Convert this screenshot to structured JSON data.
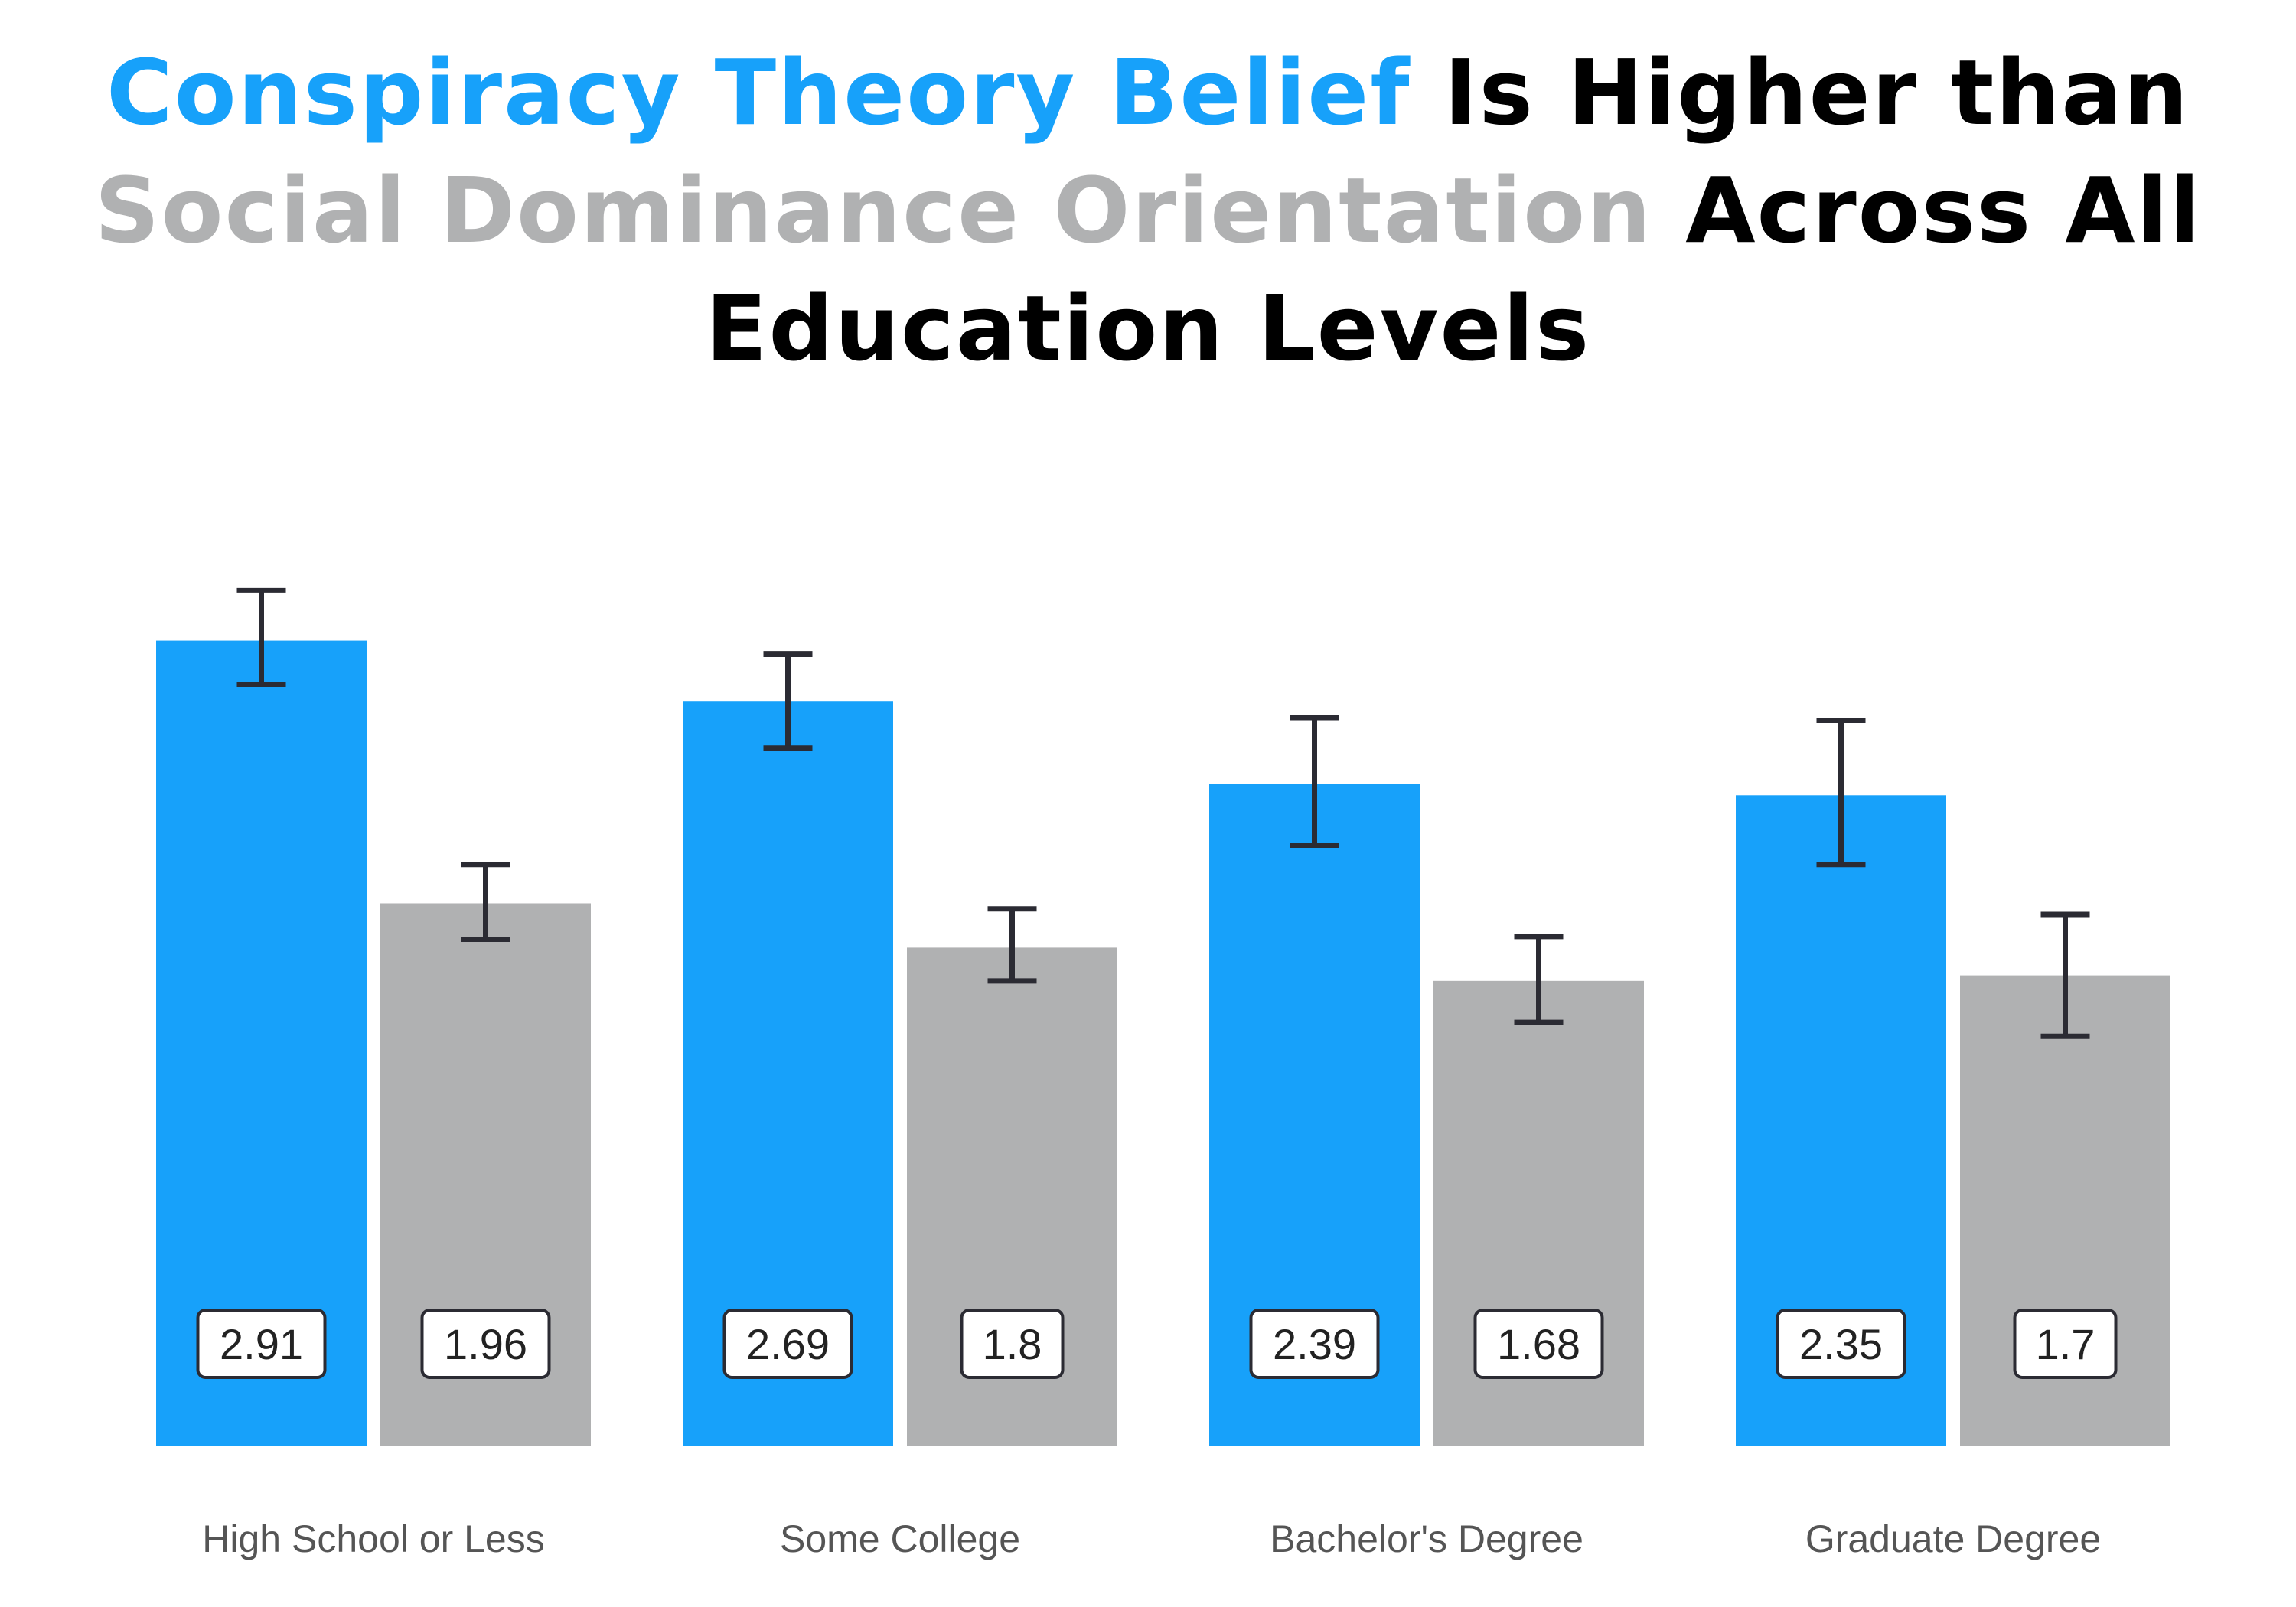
{
  "title": {
    "part1": "Conspiracy Theory Belief",
    "part2": " Is Higher than ",
    "part3": "Social Dominance Orientation",
    "part4": " Across All Education Levels"
  },
  "colors": {
    "series1": "#17a1fa",
    "series2": "#b0b1b2",
    "error_bar": "#2b2b33",
    "label_border": "#2b2b33"
  },
  "chart_data": {
    "type": "bar",
    "title": "Conspiracy Theory Belief Is Higher than Social Dominance Orientation Across All Education Levels",
    "xlabel": "",
    "ylabel": "",
    "ylim": [
      0,
      3.4
    ],
    "grid": false,
    "legend": "none",
    "categories": [
      "High School or Less",
      "Some College",
      "Bachelor's Degree",
      "Graduate Degree"
    ],
    "series": [
      {
        "name": "Conspiracy Theory Belief",
        "values": [
          2.91,
          2.69,
          2.39,
          2.35
        ],
        "error_low": [
          2.75,
          2.52,
          2.17,
          2.1
        ],
        "error_high": [
          3.09,
          2.86,
          2.63,
          2.62
        ]
      },
      {
        "name": "Social Dominance Orientation",
        "values": [
          1.96,
          1.8,
          1.68,
          1.7
        ],
        "error_low": [
          1.83,
          1.68,
          1.53,
          1.48
        ],
        "error_high": [
          2.1,
          1.94,
          1.84,
          1.92
        ]
      }
    ],
    "value_labels": [
      [
        "2.91",
        "2.69",
        "2.39",
        "2.35"
      ],
      [
        "1.96",
        "1.8",
        "1.68",
        "1.7"
      ]
    ]
  }
}
